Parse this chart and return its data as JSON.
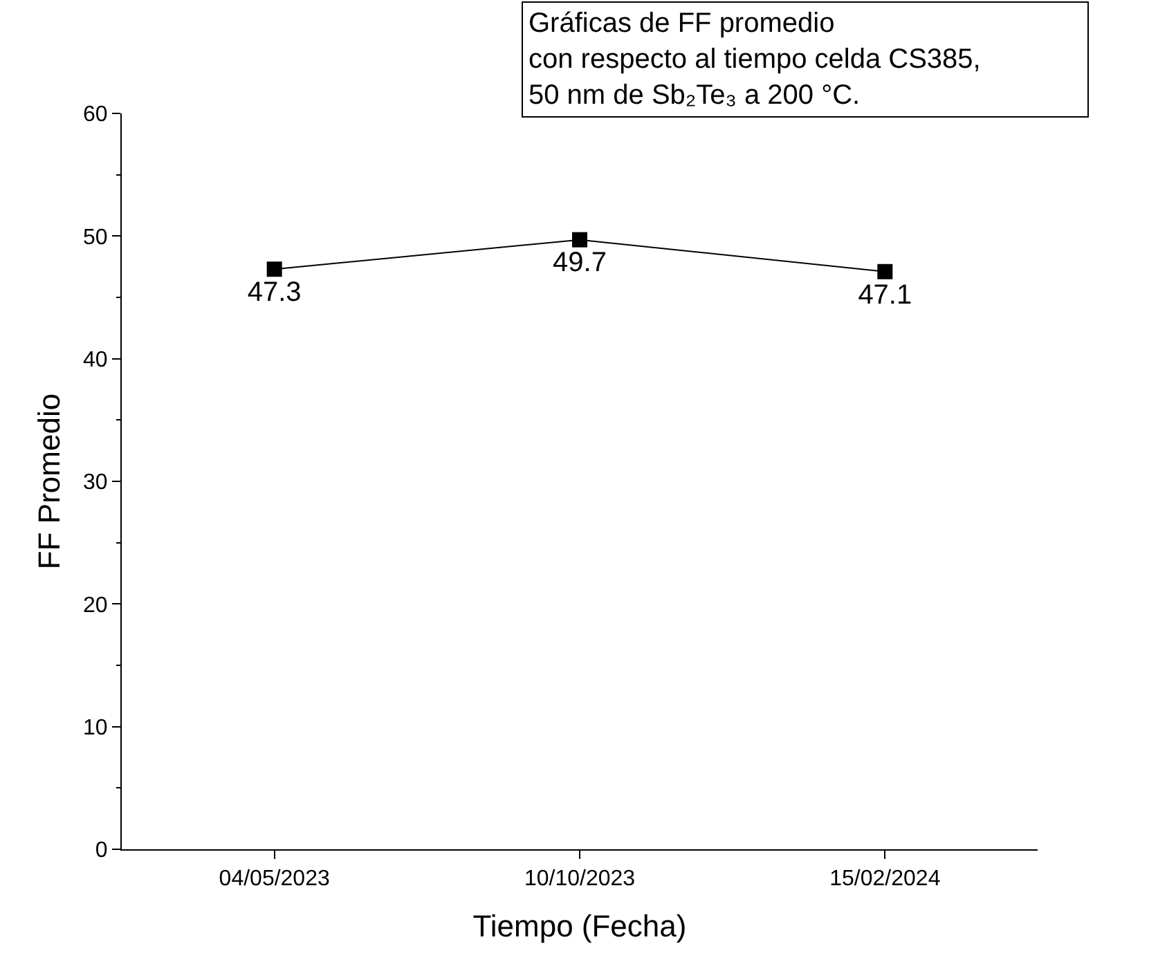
{
  "chart_data": {
    "type": "line",
    "title": "Gráficas de FF promedio\ncon respecto al tiempo celda CS385,\n50 nm de Sb₂Te₃ a 200 °C.",
    "xlabel": "Tiempo (Fecha)",
    "ylabel": "FF Promedio",
    "categories": [
      "04/05/2023",
      "10/10/2023",
      "15/02/2024"
    ],
    "series": [
      {
        "color": "#000000",
        "values": [
          47.3,
          49.7,
          47.1
        ]
      }
    ],
    "ylim": [
      0,
      60
    ],
    "yticks": [
      0,
      10,
      20,
      30,
      40,
      50,
      60
    ],
    "marker": "square",
    "line_style": "solid",
    "data_labels": true
  }
}
